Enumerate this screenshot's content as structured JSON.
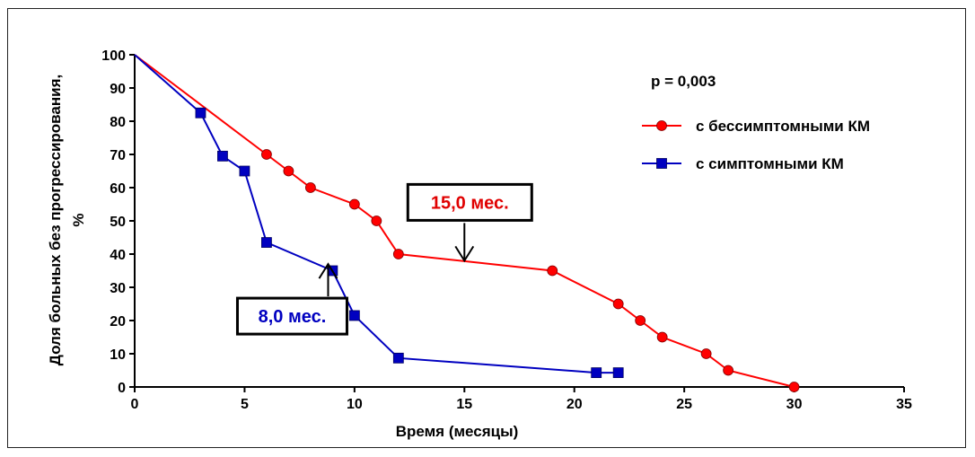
{
  "chart_data": {
    "type": "line",
    "title": "",
    "xlabel": "Время (месяцы)",
    "ylabel": "Доля больных без прогрессирования, %",
    "xlim": [
      0,
      35
    ],
    "ylim": [
      0,
      100
    ],
    "xticks": [
      0,
      5,
      10,
      15,
      20,
      25,
      30,
      35
    ],
    "yticks": [
      0,
      10,
      20,
      30,
      40,
      50,
      60,
      70,
      80,
      90,
      100
    ],
    "grid": false,
    "legend_position": "top-right",
    "p_value_text": "p = 0,003",
    "series": [
      {
        "name": "с бессимптомными КМ",
        "color": "#ff0000",
        "marker": "circle",
        "x": [
          0,
          6,
          7,
          8,
          10,
          11,
          12,
          19,
          22,
          23,
          24,
          26,
          27,
          30
        ],
        "y": [
          100,
          70,
          65,
          60,
          55,
          50,
          40,
          35,
          25,
          20,
          15,
          10,
          5,
          0
        ],
        "marker_x": [
          6,
          7,
          8,
          10,
          11,
          12,
          19,
          22,
          23,
          24,
          26,
          27,
          30
        ]
      },
      {
        "name": "с симптомными КМ",
        "color": "#0000c0",
        "marker": "square",
        "x": [
          0,
          3,
          4,
          5,
          6,
          9,
          10,
          12,
          21,
          22
        ],
        "y": [
          100,
          82.5,
          69.5,
          65,
          43.5,
          35,
          21.5,
          8.7,
          4.3,
          4.3
        ],
        "marker_x": [
          3,
          4,
          5,
          6,
          9,
          10,
          12,
          21,
          22
        ]
      }
    ],
    "annotations": [
      {
        "text": "15,0 мес.",
        "color": "#e00000",
        "x": 15,
        "y": 38,
        "direction": "down"
      },
      {
        "text": "8,0 мес.",
        "color": "#0000c0",
        "x": 8.8,
        "y": 37,
        "direction": "up"
      }
    ]
  }
}
